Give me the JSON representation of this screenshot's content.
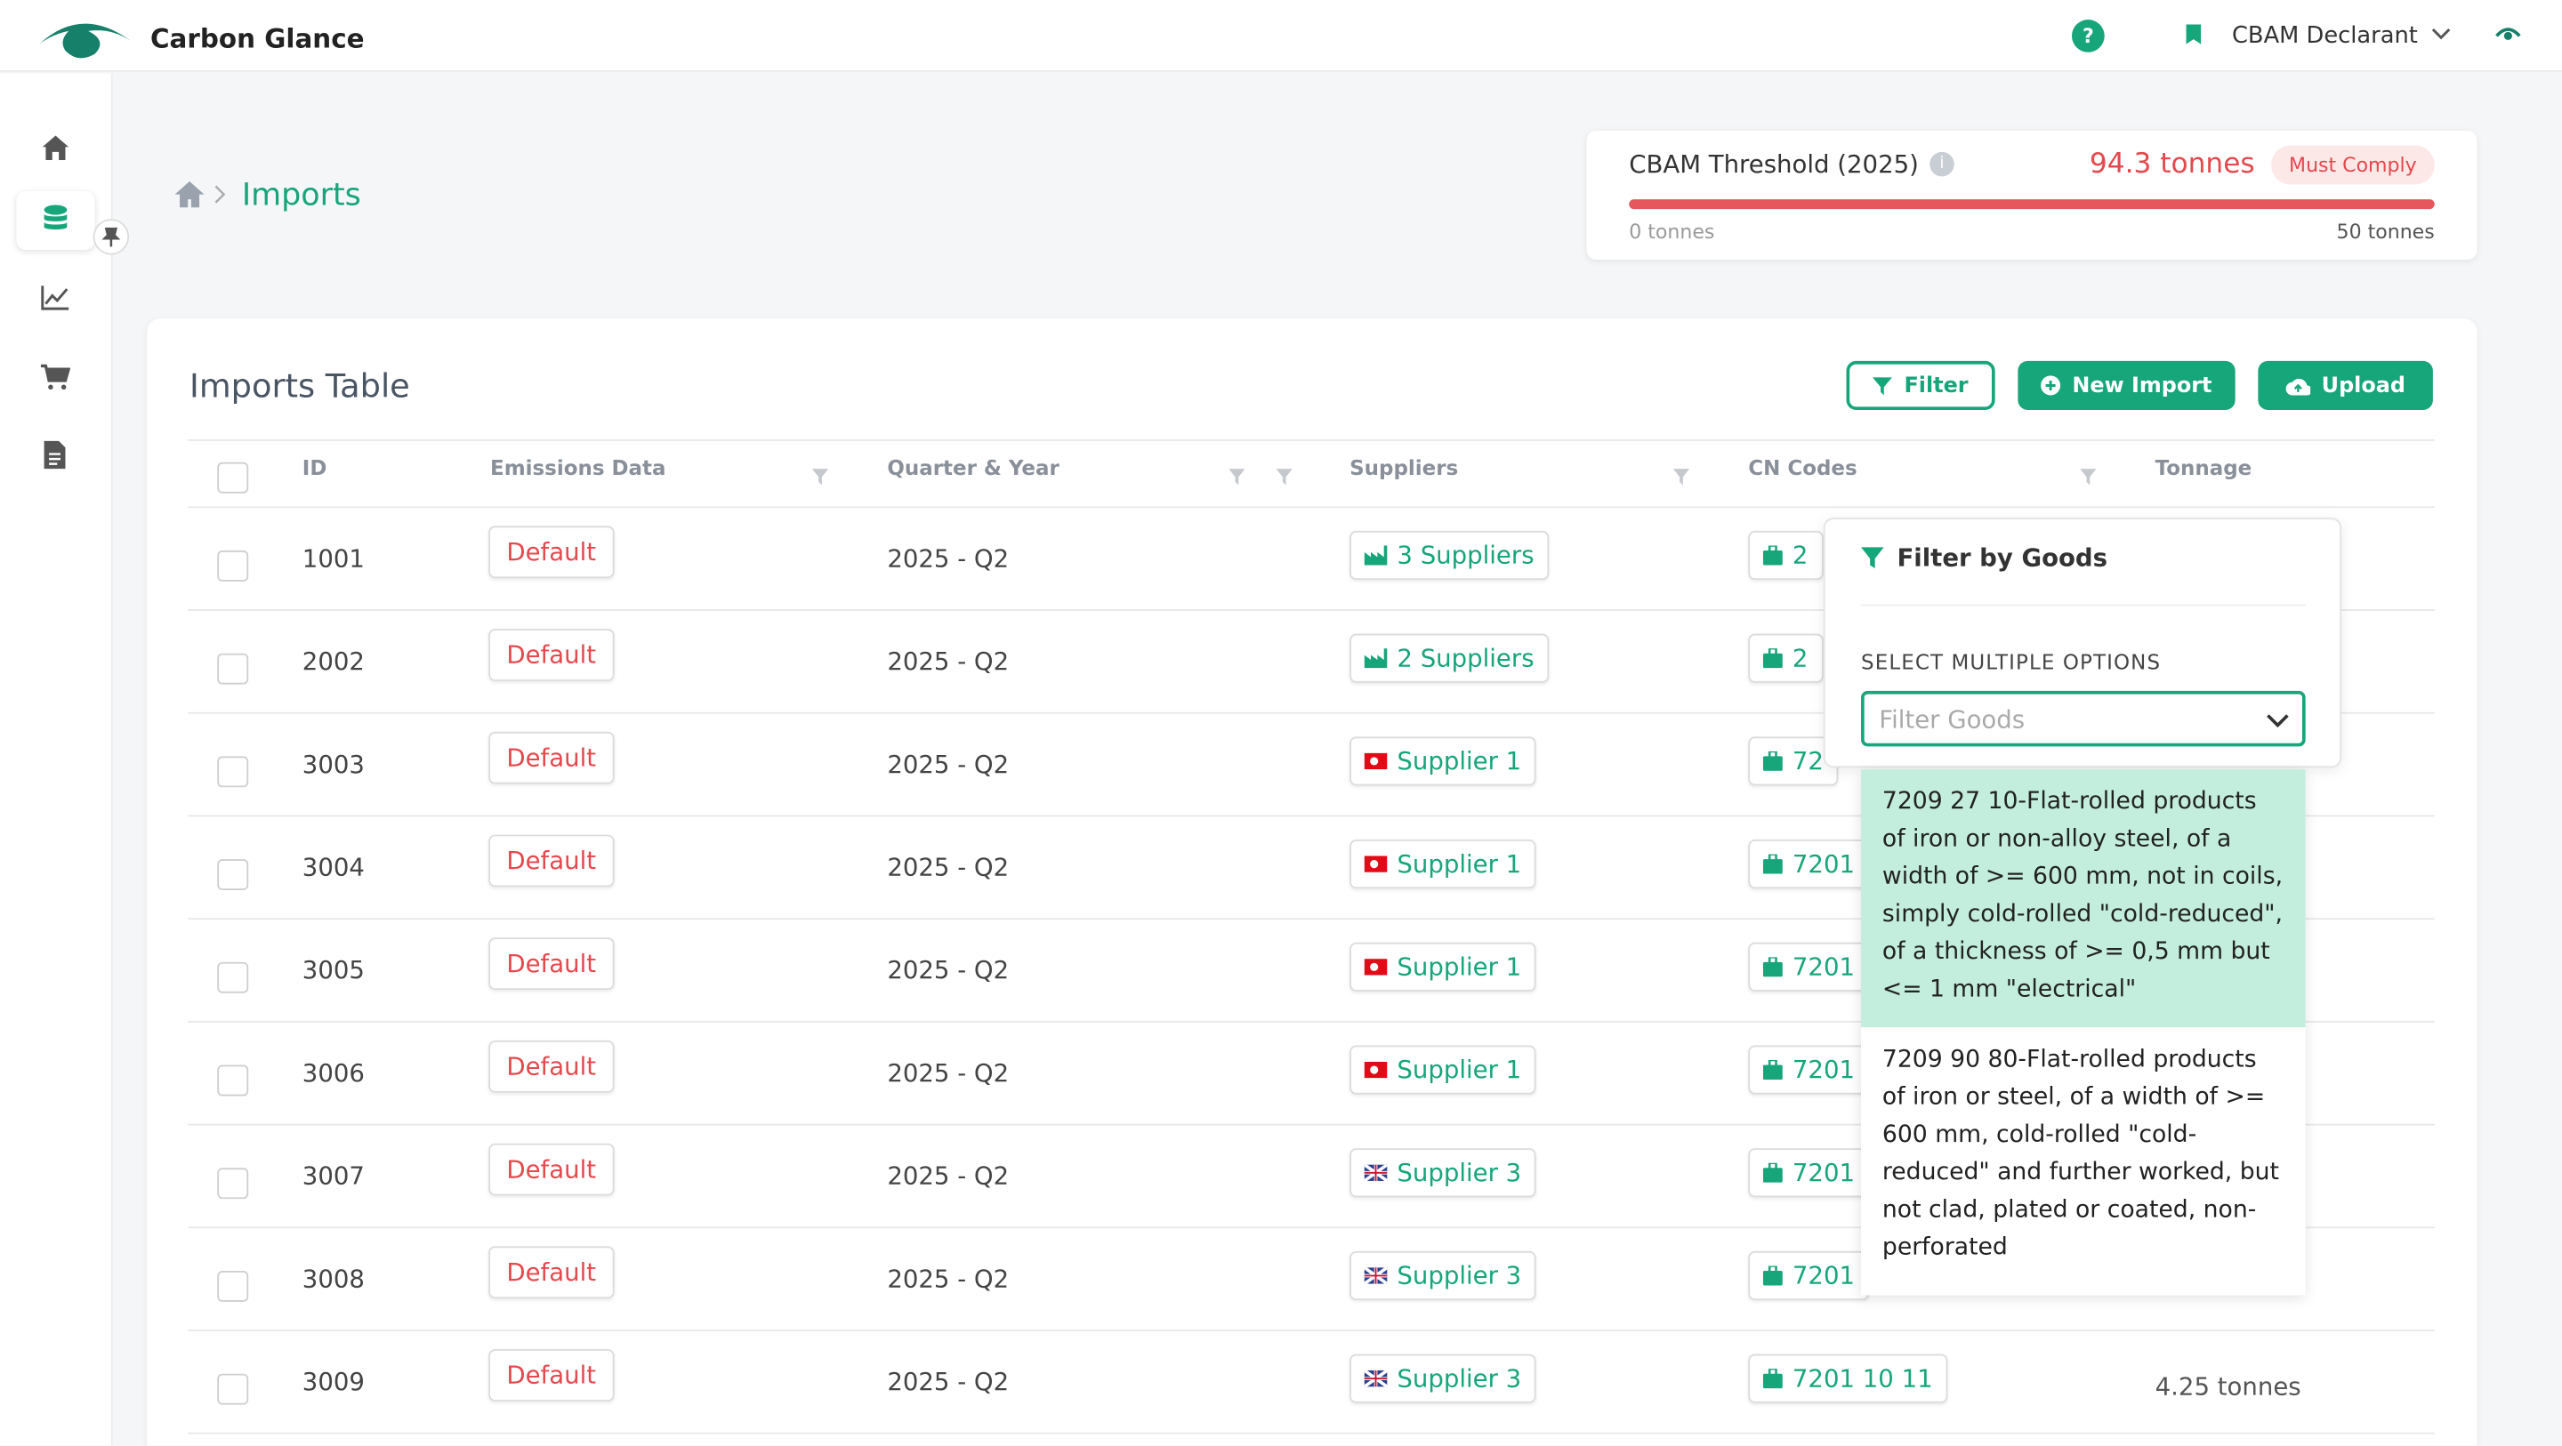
{
  "header": {
    "brand": "Carbon Glance",
    "role": "CBAM Declarant"
  },
  "breadcrumb": {
    "current": "Imports"
  },
  "threshold": {
    "title": "CBAM Threshold (2025)",
    "amount": "94.3 tonnes",
    "status": "Must Comply",
    "min_label": "0 tonnes",
    "max_label": "50 tonnes"
  },
  "table": {
    "title": "Imports Table",
    "buttons": [
      "Filter",
      "New Import",
      "Upload"
    ],
    "columns": [
      "ID",
      "Emissions Data",
      "Quarter & Year",
      "Suppliers",
      "CN Codes",
      "Tonnage"
    ],
    "rows": [
      {
        "id": "1001",
        "emissions": "Default",
        "quarter": "2025 - Q2",
        "supplier": "3 Suppliers",
        "cn_code": "2"
      },
      {
        "id": "2002",
        "emissions": "Default",
        "quarter": "2025 - Q2",
        "supplier": "2 Suppliers",
        "cn_code": "2"
      },
      {
        "id": "3003",
        "emissions": "Default",
        "quarter": "2025 - Q2",
        "supplier": "Supplier 1",
        "cn_code": "72"
      },
      {
        "id": "3004",
        "emissions": "Default",
        "quarter": "2025 - Q2",
        "supplier": "Supplier 1",
        "cn_code": "7201"
      },
      {
        "id": "3005",
        "emissions": "Default",
        "quarter": "2025 - Q2",
        "supplier": "Supplier 1",
        "cn_code": "7201"
      },
      {
        "id": "3006",
        "emissions": "Default",
        "quarter": "2025 - Q2",
        "supplier": "Supplier 1",
        "cn_code": "7201"
      },
      {
        "id": "3007",
        "emissions": "Default",
        "quarter": "2025 - Q2",
        "supplier": "Supplier 3",
        "cn_code": "7201"
      },
      {
        "id": "3008",
        "emissions": "Default",
        "quarter": "2025 - Q2",
        "supplier": "Supplier 3",
        "cn_code": "7201"
      },
      {
        "id": "3009",
        "emissions": "Default",
        "quarter": "2025 - Q2",
        "supplier": "Supplier 3",
        "cn_code": "7201 10 11",
        "tonnage": "4.25 tonnes"
      }
    ]
  },
  "filter_dropdown": {
    "title": "Filter by Goods",
    "label": "SELECT MULTIPLE OPTIONS",
    "placeholder": "Filter Goods",
    "options": [
      "7209 27 10-Flat-rolled products of iron or non-alloy steel, of a width of >= 600 mm, not in coils, simply cold-rolled \"cold-reduced\", of a thickness of >= 0,5 mm but <= 1 mm \"electrical\"",
      "7209 90 80-Flat-rolled products of iron or steel, of a width of >= 600 mm, cold-rolled \"cold-reduced\" and further worked, but not clad, plated or coated, non-perforated"
    ]
  }
}
